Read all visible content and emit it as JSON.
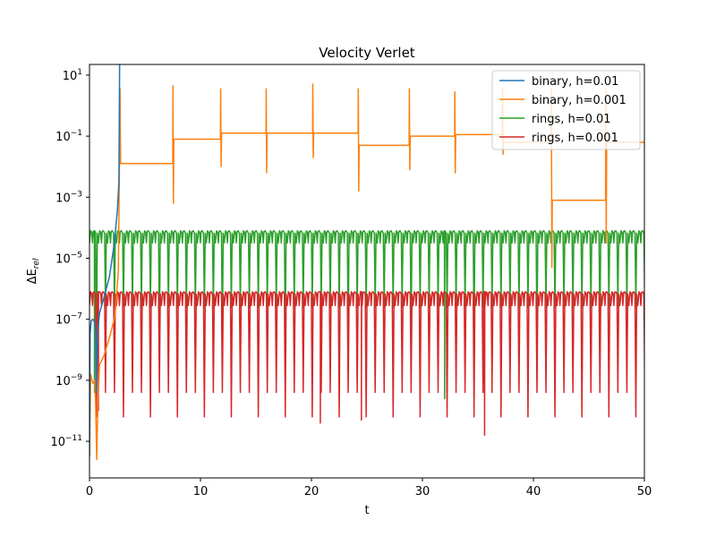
{
  "chart_data": {
    "type": "line",
    "title": "Velocity Verlet",
    "xlabel": "t",
    "ylabel": "ΔE_rel",
    "ylabel_main": "ΔE",
    "ylabel_sub": "rel",
    "xlim": [
      0,
      50
    ],
    "ylim_log10": [
      -12.2,
      1.35
    ],
    "yscale": "log",
    "grid": false,
    "legend_position": "top-right",
    "x_ticks": [
      0,
      10,
      20,
      30,
      40,
      50
    ],
    "y_ticks": [
      {
        "exp": 1,
        "base": "10",
        "sup": "1"
      },
      {
        "exp": -1,
        "base": "10",
        "sup": "−1"
      },
      {
        "exp": -3,
        "base": "10",
        "sup": "−3"
      },
      {
        "exp": -5,
        "base": "10",
        "sup": "−5"
      },
      {
        "exp": -7,
        "base": "10",
        "sup": "−7"
      },
      {
        "exp": -9,
        "base": "10",
        "sup": "−9"
      },
      {
        "exp": -11,
        "base": "10",
        "sup": "−11"
      }
    ],
    "series": [
      {
        "name": "binary, h=0.01",
        "color": "#1f77b4",
        "points": [
          [
            0.0,
            -11.5
          ],
          [
            0.05,
            -7.5
          ],
          [
            0.15,
            -7.05
          ],
          [
            0.3,
            -7.0
          ],
          [
            0.45,
            -7.1
          ],
          [
            0.55,
            -7.3
          ],
          [
            0.6,
            -9.4
          ],
          [
            0.7,
            -7.6
          ],
          [
            0.9,
            -6.8
          ],
          [
            1.3,
            -6.3
          ],
          [
            1.8,
            -5.6
          ],
          [
            2.2,
            -4.6
          ],
          [
            2.5,
            -3.5
          ],
          [
            2.65,
            -2.5
          ],
          [
            2.72,
            1.7
          ],
          [
            3.5,
            1.7
          ],
          [
            10,
            1.7
          ],
          [
            20,
            1.7
          ],
          [
            30,
            1.7
          ],
          [
            40,
            1.7
          ],
          [
            50,
            1.7
          ]
        ]
      },
      {
        "name": "binary, h=0.001",
        "color": "#ff7f0e",
        "points": [
          [
            0.0,
            -11.5
          ],
          [
            0.1,
            -8.8
          ],
          [
            0.3,
            -9.1
          ],
          [
            0.45,
            -9.0
          ],
          [
            0.55,
            -9.7
          ],
          [
            0.65,
            -11.6
          ],
          [
            0.75,
            -9.8
          ],
          [
            0.9,
            -8.5
          ],
          [
            1.3,
            -8.2
          ],
          [
            1.8,
            -7.6
          ],
          [
            2.3,
            -6.9
          ],
          [
            2.6,
            -5.4
          ],
          [
            2.7,
            -1.9
          ],
          [
            2.75,
            0.55
          ],
          [
            2.8,
            -1.9
          ],
          [
            7.5,
            -1.9
          ],
          [
            7.52,
            0.65
          ],
          [
            7.56,
            -3.2
          ],
          [
            7.6,
            -1.1
          ],
          [
            11.8,
            -1.1
          ],
          [
            11.82,
            0.55
          ],
          [
            11.86,
            -2.0
          ],
          [
            11.9,
            -0.9
          ],
          [
            15.9,
            -0.9
          ],
          [
            15.92,
            0.55
          ],
          [
            15.96,
            -2.2
          ],
          [
            16.0,
            -0.9
          ],
          [
            20.1,
            -0.9
          ],
          [
            20.12,
            0.7
          ],
          [
            20.16,
            -1.7
          ],
          [
            20.2,
            -0.9
          ],
          [
            24.2,
            -0.9
          ],
          [
            24.22,
            0.55
          ],
          [
            24.26,
            -2.8
          ],
          [
            24.3,
            -1.3
          ],
          [
            28.8,
            -1.3
          ],
          [
            28.82,
            0.55
          ],
          [
            28.86,
            -2.1
          ],
          [
            28.9,
            -1.0
          ],
          [
            32.9,
            -1.0
          ],
          [
            32.92,
            0.45
          ],
          [
            32.96,
            -2.2
          ],
          [
            33.0,
            -0.95
          ],
          [
            37.2,
            -0.95
          ],
          [
            37.22,
            0.55
          ],
          [
            37.26,
            -1.6
          ],
          [
            37.3,
            -1.2
          ],
          [
            41.6,
            -1.2
          ],
          [
            41.62,
            0.55
          ],
          [
            41.66,
            -5.3
          ],
          [
            41.7,
            -3.1
          ],
          [
            46.5,
            -3.1
          ],
          [
            46.52,
            0.55
          ],
          [
            46.56,
            -4.5
          ],
          [
            46.6,
            -1.2
          ],
          [
            50,
            -1.2
          ]
        ]
      }
    ],
    "oscillating_series": [
      {
        "name": "rings, h=0.01",
        "color": "#2ca02c",
        "top": -4.1,
        "trough": -4.5,
        "dip": -6.6,
        "deep_dip_every": 7,
        "deep_dip_value": -7.6,
        "special_dips": [
          [
            0.45,
            -9.4
          ],
          [
            32.0,
            -9.6
          ]
        ],
        "period": 0.81
      },
      {
        "name": "rings, h=0.001",
        "color": "#d62728",
        "top": -6.1,
        "trough": -6.55,
        "dip": -9.4,
        "deep_dip_every": 3,
        "deep_dip_value": -10.2,
        "special_dips": [
          [
            0.8,
            -10.0
          ],
          [
            20.8,
            -10.4
          ],
          [
            24.5,
            -10.3
          ],
          [
            35.6,
            -10.8
          ]
        ],
        "period": 0.81
      }
    ]
  }
}
